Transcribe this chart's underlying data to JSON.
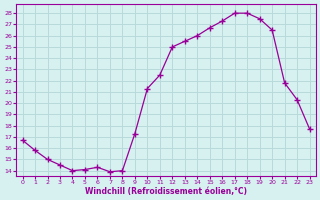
{
  "x": [
    0,
    1,
    2,
    3,
    4,
    5,
    6,
    7,
    8,
    9,
    10,
    11,
    12,
    13,
    14,
    15,
    16,
    17,
    18,
    19,
    20,
    21,
    22,
    23
  ],
  "y": [
    16.7,
    15.8,
    15.0,
    14.5,
    14.0,
    14.1,
    14.3,
    13.9,
    14.0,
    17.3,
    21.3,
    22.5,
    25.0,
    25.5,
    26.0,
    26.7,
    27.3,
    28.0,
    28.0,
    27.5,
    26.5,
    21.8,
    20.3,
    17.7
  ],
  "line_color": "#990099",
  "marker": "+",
  "marker_size": 4,
  "marker_lw": 1.0,
  "line_width": 0.9,
  "bg_color": "#d7f0f0",
  "grid_color": "#b8dada",
  "xlabel": "Windchill (Refroidissement éolien,°C)",
  "ylabel_ticks": [
    14,
    15,
    16,
    17,
    18,
    19,
    20,
    21,
    22,
    23,
    24,
    25,
    26,
    27,
    28
  ],
  "ylim": [
    13.5,
    28.8
  ],
  "xlim": [
    -0.5,
    23.5
  ],
  "tick_fontsize": 4.5,
  "xlabel_fontsize": 5.5
}
